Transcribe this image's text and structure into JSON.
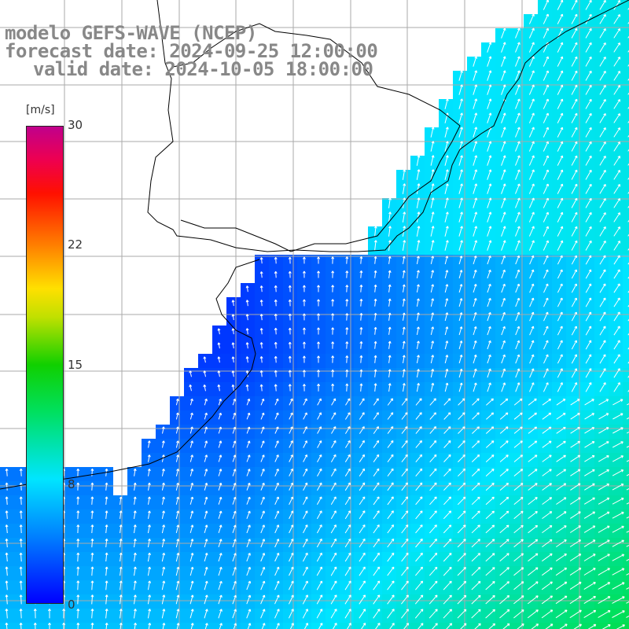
{
  "title": {
    "line1": "modelo GEFS-WAVE (NCEP)",
    "line2": "forecast date: 2024-09-25 12:00:00",
    "line3": "valid date: 2024-10-05 18:00:00"
  },
  "colorbar": {
    "unit": "[m/s]",
    "min": 0,
    "max": 30,
    "ticks": [
      "30",
      "22",
      "15",
      "8",
      "0"
    ],
    "tick_values": [
      30,
      22,
      15,
      8,
      0
    ]
  },
  "colors": {
    "land": "#ffffff",
    "grid": "#aaaaaa",
    "coast": "#000000",
    "arrows": "#ffffff"
  },
  "map": {
    "type": "wind-speed-vector-field",
    "grid_on": true
  }
}
